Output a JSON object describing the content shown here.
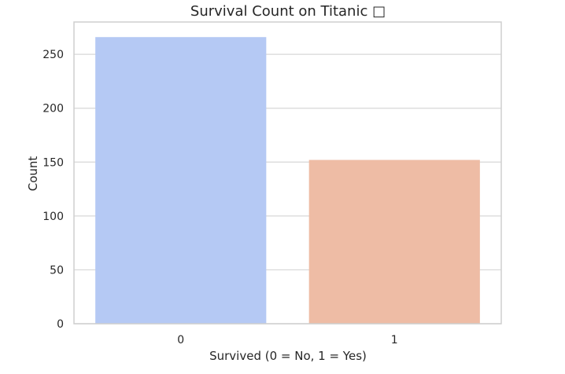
{
  "chart_data": {
    "type": "bar",
    "title": "Survival Count on Titanic □",
    "xlabel": "Survived (0 = No, 1 = Yes)",
    "ylabel": "Count",
    "categories": [
      "0",
      "1"
    ],
    "values": [
      266,
      152
    ],
    "colors": [
      "#b5c9f4",
      "#eebca5"
    ],
    "ylim": [
      0,
      280
    ],
    "yticks": [
      0,
      50,
      100,
      150,
      200,
      250
    ],
    "grid": true,
    "grid_axis": "y",
    "legend": "none"
  }
}
